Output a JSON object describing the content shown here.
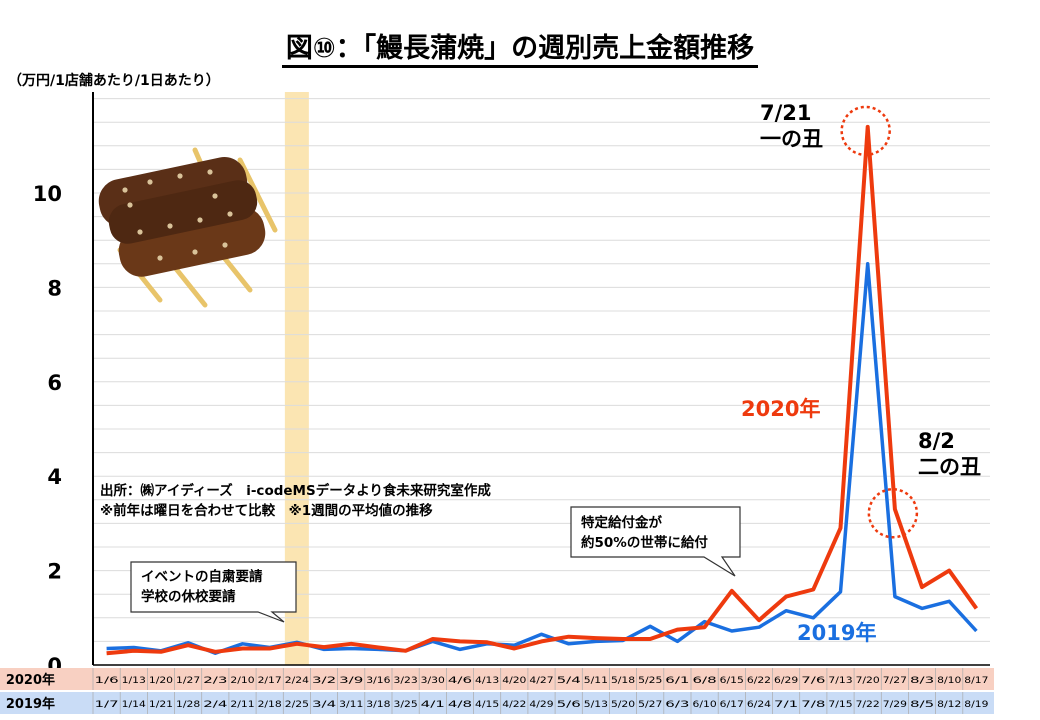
{
  "title": "図⑩：「鰻長蒲焼」の週別売上金額推移",
  "unit_label": "（万円/1店舗あたり/1日あたり）",
  "source": {
    "line1": "出所：㈱アイディーズ　i-codeMSデータより食未来研究室作成",
    "line2": "※前年は曜日を合わせて比較　※1週間の平均値の推移"
  },
  "annotations": {
    "callout_event_1": "イベントの自粛要請",
    "callout_event_2": "学校の休校要請",
    "callout_benefit_1": "特定給付金が",
    "callout_benefit_2": "約50%の世帯に給付",
    "ushi1_date": "7/21",
    "ushi1_name": "一の丑",
    "ushi2_date": "8/2",
    "ushi2_name": "二の丑"
  },
  "row_labels": {
    "y2020": "2020年",
    "y2019": "2019年"
  },
  "colors": {
    "series_2020": "#ee3a0e",
    "series_2019": "#1a6fe0",
    "row_2020_bg": "#f8d0c2",
    "row_2019_bg": "#c9dcf6",
    "highlight": "#fbe5b2",
    "marker_circle": "#ee3a0e"
  },
  "icons": {
    "illustration": "grilled-eel-skewer-icon"
  },
  "chart_data": {
    "type": "line",
    "ylim": [
      0,
      12
    ],
    "yticks": [
      0,
      2,
      4,
      6,
      8,
      10
    ],
    "grid": true,
    "x_2020": [
      "1/6",
      "1/13",
      "1/20",
      "1/27",
      "2/3",
      "2/10",
      "2/17",
      "2/24",
      "3/2",
      "3/9",
      "3/16",
      "3/23",
      "3/30",
      "4/6",
      "4/13",
      "4/20",
      "4/27",
      "5/4",
      "5/11",
      "5/18",
      "5/25",
      "6/1",
      "6/8",
      "6/15",
      "6/22",
      "6/29",
      "7/6",
      "7/13",
      "7/20",
      "7/27",
      "8/3",
      "8/10",
      "8/17"
    ],
    "x_2019": [
      "1/7",
      "1/14",
      "1/21",
      "1/28",
      "2/4",
      "2/11",
      "2/18",
      "2/25",
      "3/4",
      "3/11",
      "3/18",
      "3/25",
      "4/1",
      "4/8",
      "4/15",
      "4/22",
      "4/29",
      "5/6",
      "5/13",
      "5/20",
      "5/27",
      "6/3",
      "6/10",
      "6/17",
      "6/24",
      "7/1",
      "7/8",
      "7/15",
      "7/22",
      "7/29",
      "8/5",
      "8/12",
      "8/19"
    ],
    "series": [
      {
        "name": "2020年",
        "values": [
          0.25,
          0.3,
          0.28,
          0.42,
          0.28,
          0.35,
          0.35,
          0.45,
          0.38,
          0.45,
          0.37,
          0.3,
          0.55,
          0.5,
          0.48,
          0.35,
          0.5,
          0.6,
          0.57,
          0.55,
          0.55,
          0.75,
          0.8,
          1.57,
          0.95,
          1.45,
          1.6,
          2.9,
          11.4,
          3.3,
          1.65,
          2.0,
          1.2
        ]
      },
      {
        "name": "2019年",
        "values": [
          0.35,
          0.37,
          0.3,
          0.47,
          0.25,
          0.45,
          0.37,
          0.48,
          0.33,
          0.35,
          0.33,
          0.3,
          0.5,
          0.33,
          0.45,
          0.42,
          0.65,
          0.45,
          0.5,
          0.52,
          0.82,
          0.5,
          0.92,
          0.72,
          0.8,
          1.15,
          1.0,
          1.55,
          8.5,
          1.45,
          1.2,
          1.35,
          0.72
        ]
      }
    ],
    "highlight_week_2020": "2/24",
    "marked_weeks_2020": [
      "7/20",
      "7/27"
    ]
  }
}
